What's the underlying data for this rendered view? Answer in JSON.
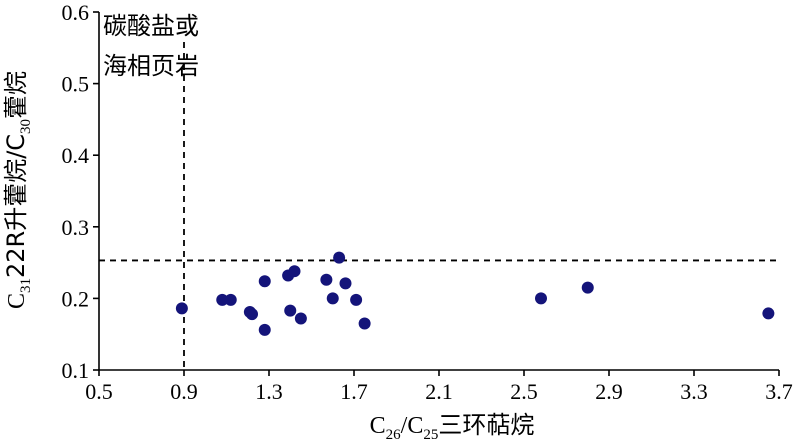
{
  "chart_data": {
    "type": "scatter",
    "xlabel": {
      "prefix": "C",
      "sub1": "26",
      "mid": "/C",
      "sub2": "25",
      "suffix": "三环萜烷"
    },
    "ylabel": {
      "prefix": "C",
      "sub1": "31",
      "mid": "22R升藿烷/C",
      "sub2": "30",
      "suffix": "藿烷"
    },
    "xlim": [
      0.5,
      3.7
    ],
    "ylim": [
      0.1,
      0.6
    ],
    "xticks": [
      "0.5",
      "0.9",
      "1.3",
      "1.7",
      "2.1",
      "2.5",
      "2.9",
      "3.3",
      "3.7"
    ],
    "yticks": [
      "0.1",
      "0.2",
      "0.3",
      "0.4",
      "0.5",
      "0.6"
    ],
    "grid": false,
    "marker_color": "#14147a",
    "reference_lines": [
      {
        "orientation": "vertical",
        "x": 0.9
      },
      {
        "orientation": "horizontal",
        "y": 0.253
      }
    ],
    "annotation": [
      "碳酸盐或",
      "海相页岩"
    ],
    "points": [
      {
        "x": 0.89,
        "y": 0.186
      },
      {
        "x": 1.08,
        "y": 0.198
      },
      {
        "x": 1.12,
        "y": 0.198
      },
      {
        "x": 1.21,
        "y": 0.181
      },
      {
        "x": 1.22,
        "y": 0.178
      },
      {
        "x": 1.28,
        "y": 0.224
      },
      {
        "x": 1.28,
        "y": 0.156
      },
      {
        "x": 1.39,
        "y": 0.232
      },
      {
        "x": 1.4,
        "y": 0.183
      },
      {
        "x": 1.42,
        "y": 0.238
      },
      {
        "x": 1.45,
        "y": 0.172
      },
      {
        "x": 1.57,
        "y": 0.226
      },
      {
        "x": 1.6,
        "y": 0.2
      },
      {
        "x": 1.63,
        "y": 0.257
      },
      {
        "x": 1.66,
        "y": 0.221
      },
      {
        "x": 1.71,
        "y": 0.198
      },
      {
        "x": 1.75,
        "y": 0.165
      },
      {
        "x": 2.58,
        "y": 0.2
      },
      {
        "x": 2.8,
        "y": 0.215
      },
      {
        "x": 3.65,
        "y": 0.179
      }
    ]
  }
}
